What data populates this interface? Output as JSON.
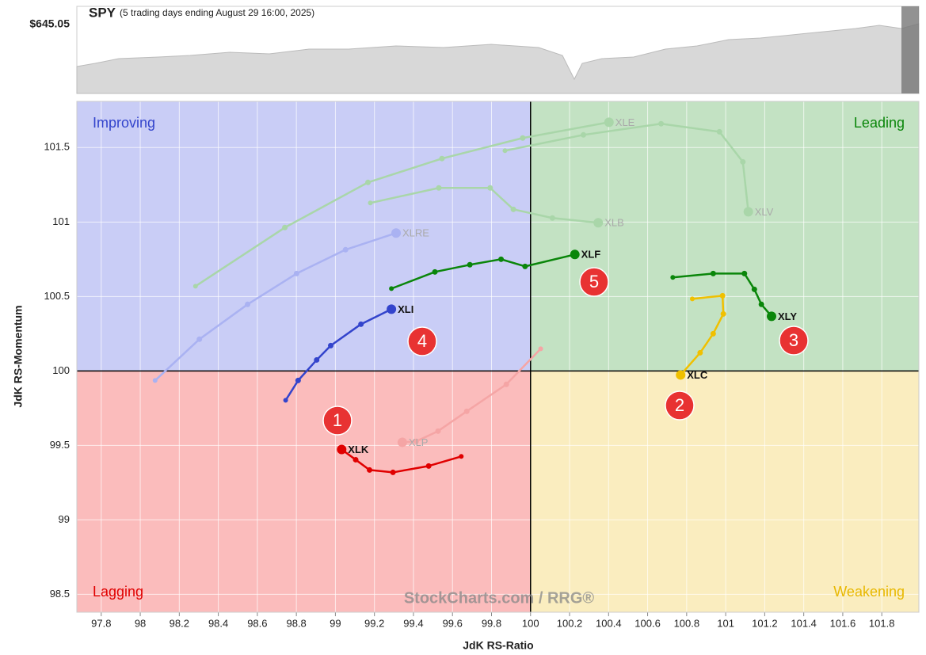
{
  "chart_data": {
    "type": "rrg",
    "title": "SPY",
    "subtitle": "(5 trading days ending August 29 16:00, 2025)",
    "price_label": "$645.05",
    "x_label": "JdK RS-Ratio",
    "y_label": "JdK RS-Momentum",
    "watermark": "StockCharts.com / RRG®",
    "quadrants": {
      "improving": "Improving",
      "leading": "Leading",
      "lagging": "Lagging",
      "weakening": "Weakening"
    },
    "center": [
      100,
      100
    ],
    "xlim": [
      97.675,
      101.99
    ],
    "ylim": [
      98.38,
      101.81
    ],
    "xticks": [
      97.8,
      98,
      98.2,
      98.4,
      98.6,
      98.8,
      99,
      99.2,
      99.4,
      99.6,
      99.8,
      100,
      100.2,
      100.4,
      100.6,
      100.8,
      101,
      101.2,
      101.4,
      101.6,
      101.8
    ],
    "yticks": [
      98.5,
      99,
      99.5,
      100,
      100.5,
      101,
      101.5
    ],
    "grid": true,
    "annotations": [
      "1",
      "2",
      "3",
      "4",
      "5"
    ],
    "series": [
      {
        "name": "XLE",
        "color": "#a9d6a9",
        "x": [
          98.283,
          98.741,
          99.167,
          99.546,
          99.96,
          100.402
        ],
        "y": [
          100.569,
          100.963,
          101.266,
          101.426,
          101.564,
          101.67
        ]
      },
      {
        "name": "XLV",
        "color": "#a9d6a9",
        "x": [
          99.869,
          100.271,
          100.669,
          100.968,
          101.088,
          101.116
        ],
        "y": [
          101.479,
          101.585,
          101.66,
          101.606,
          101.404,
          101.069
        ]
      },
      {
        "name": "XLB",
        "color": "#a9d6a9",
        "x": [
          99.179,
          99.53,
          99.793,
          99.912,
          100.112,
          100.347
        ],
        "y": [
          101.128,
          101.229,
          101.229,
          101.085,
          101.027,
          100.995
        ]
      },
      {
        "name": "XLRE",
        "color": "#aab2f2",
        "x": [
          98.076,
          98.303,
          98.55,
          98.801,
          99.052,
          99.311
        ],
        "y": [
          99.936,
          100.213,
          100.447,
          100.654,
          100.814,
          100.926
        ]
      },
      {
        "name": "XLP",
        "color": "#f5a5a5",
        "x": [
          100.052,
          99.876,
          99.673,
          99.526,
          99.414,
          99.343
        ],
        "y": [
          100.149,
          99.91,
          99.729,
          99.596,
          99.527,
          99.521
        ]
      },
      {
        "name": "XLK",
        "color": "#e00000",
        "x": [
          99.645,
          99.478,
          99.295,
          99.175,
          99.104,
          99.032
        ],
        "y": [
          99.426,
          99.362,
          99.319,
          99.335,
          99.404,
          99.473
        ]
      },
      {
        "name": "XLC",
        "color": "#f0c000",
        "x": [
          100.829,
          100.984,
          100.988,
          100.936,
          100.869,
          100.769
        ],
        "y": [
          100.484,
          100.505,
          100.383,
          100.25,
          100.122,
          99.973
        ]
      },
      {
        "name": "XLY",
        "color": "#0a860a",
        "x": [
          100.729,
          100.936,
          101.096,
          101.147,
          101.183,
          101.235
        ],
        "y": [
          100.628,
          100.654,
          100.654,
          100.548,
          100.447,
          100.367
        ]
      },
      {
        "name": "XLI",
        "color": "#3344cc",
        "x": [
          98.745,
          98.809,
          98.904,
          98.976,
          99.131,
          99.287
        ],
        "y": [
          99.803,
          99.936,
          100.074,
          100.17,
          100.314,
          100.415
        ]
      },
      {
        "name": "XLF",
        "color": "#0a860a",
        "x": [
          99.287,
          99.51,
          99.689,
          99.849,
          99.972,
          100.227
        ],
        "y": [
          100.553,
          100.665,
          100.713,
          100.75,
          100.702,
          100.782
        ]
      }
    ]
  }
}
